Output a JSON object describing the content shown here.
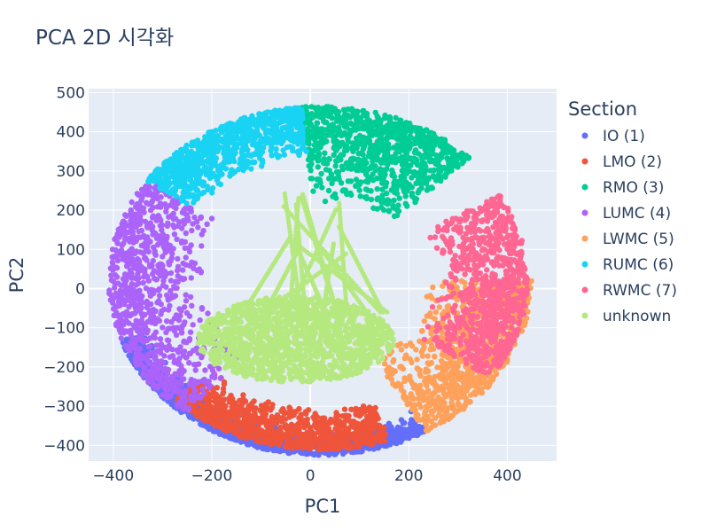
{
  "chart_data": {
    "type": "scatter",
    "title": "PCA 2D 시각화",
    "xlabel": "PC1",
    "ylabel": "PC2",
    "xlim": [
      -450,
      500
    ],
    "ylim": [
      -440,
      510
    ],
    "x_ticks": [
      -400,
      -200,
      0,
      200,
      400
    ],
    "y_ticks": [
      -400,
      -300,
      -200,
      -100,
      0,
      100,
      200,
      300,
      400,
      500
    ],
    "grid": true,
    "legend_title": "Section",
    "legend_position": "right",
    "series": [
      {
        "name": "IO (1)",
        "color": "#636efa",
        "region": {
          "ring_angle_deg": [
            200,
            300
          ],
          "r_inner": [
            0.86,
            1.0
          ]
        }
      },
      {
        "name": "LMO (2)",
        "color": "#ef553b",
        "region": {
          "ring_angle_deg": [
            225,
            290
          ],
          "r_inner": [
            0.72,
            0.97
          ]
        }
      },
      {
        "name": "RMO (3)",
        "color": "#00cc96",
        "region": {
          "ring_angle_deg": [
            45,
            95
          ],
          "r_inner": [
            0.45,
            1.0
          ]
        }
      },
      {
        "name": "LUMC (4)",
        "color": "#ab63fa",
        "region": {
          "ring_angle_deg": [
            145,
            230
          ],
          "r_inner": [
            0.55,
            1.0
          ]
        }
      },
      {
        "name": "LWMC (5)",
        "color": "#ffa15a",
        "region": {
          "ring_angle_deg": [
            300,
            360
          ],
          "r_inner": [
            0.5,
            1.0
          ]
        }
      },
      {
        "name": "RUMC (6)",
        "color": "#19d3f3",
        "region": {
          "ring_angle_deg": [
            95,
            145
          ],
          "r_inner": [
            0.7,
            1.0
          ]
        }
      },
      {
        "name": "RWMC (7)",
        "color": "#ff6692",
        "region": {
          "ring_angle_deg": [
            325,
            390
          ],
          "r_inner": [
            0.55,
            0.98
          ]
        }
      },
      {
        "name": "unknown",
        "color": "#b6e880",
        "region": {
          "center": [
            -30,
            -130
          ],
          "radius": [
            200,
            110
          ]
        }
      }
    ]
  }
}
